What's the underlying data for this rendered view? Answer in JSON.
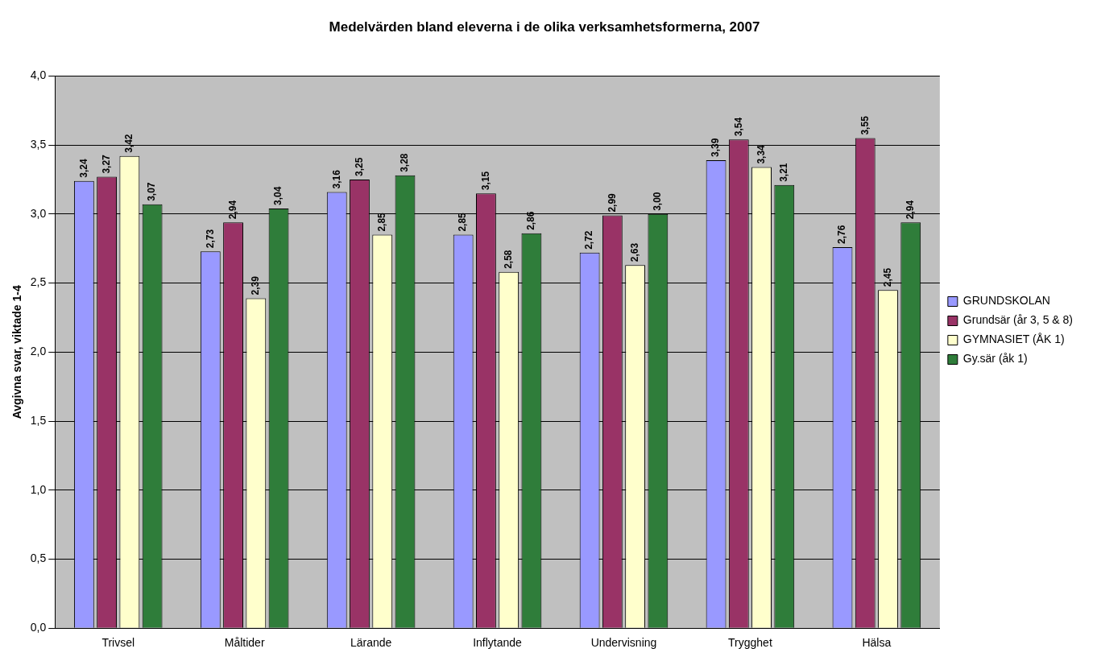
{
  "chart_data": {
    "type": "bar",
    "title": "Medelvärden bland eleverna i de olika verksamhetsformerna, 2007",
    "ylabel": "Avgivna svar, viktade 1-4",
    "categories": [
      "Trivsel",
      "Måltider",
      "Lärande",
      "Inflytande",
      "Undervisning",
      "Trygghet",
      "Hälsa"
    ],
    "series": [
      {
        "name": "GRUNDSKOLAN",
        "color": "#9999ff",
        "values": [
          3.24,
          2.73,
          3.16,
          2.85,
          2.72,
          3.39,
          2.76
        ],
        "value_labels": [
          "3,24",
          "2,73",
          "3,16",
          "2,85",
          "2,72",
          "3,39",
          "2,76"
        ]
      },
      {
        "name": "Grundsär (år 3, 5 & 8)",
        "color": "#993366",
        "values": [
          3.27,
          2.94,
          3.25,
          3.15,
          2.99,
          3.54,
          3.55
        ],
        "value_labels": [
          "3,27",
          "2,94",
          "3,25",
          "3,15",
          "2,99",
          "3,54",
          "3,55"
        ]
      },
      {
        "name": "GYMNASIET (ÅK 1)",
        "color": "#ffffcc",
        "values": [
          3.42,
          2.39,
          2.85,
          2.58,
          2.63,
          3.34,
          2.45
        ],
        "value_labels": [
          "3,42",
          "2,39",
          "2,85",
          "2,58",
          "2,63",
          "3,34",
          "2,45"
        ]
      },
      {
        "name": "Gy.sär (åk 1)",
        "color": "#2f7d3a",
        "values": [
          3.07,
          3.04,
          3.28,
          2.86,
          3.0,
          3.21,
          2.94
        ],
        "value_labels": [
          "3,07",
          "3,04",
          "3,28",
          "2,86",
          "3,00",
          "3,21",
          "2,94"
        ]
      }
    ],
    "ylim": [
      0,
      4
    ],
    "yticks": [
      {
        "value": 0,
        "label": "0,0"
      },
      {
        "value": 0.5,
        "label": "0,5"
      },
      {
        "value": 1,
        "label": "1,0"
      },
      {
        "value": 1.5,
        "label": "1,5"
      },
      {
        "value": 2,
        "label": "2,0"
      },
      {
        "value": 2.5,
        "label": "2,5"
      },
      {
        "value": 3,
        "label": "3,0"
      },
      {
        "value": 3.5,
        "label": "3,5"
      },
      {
        "value": 4,
        "label": "4,0"
      }
    ],
    "grid": "y",
    "legend": "right"
  }
}
